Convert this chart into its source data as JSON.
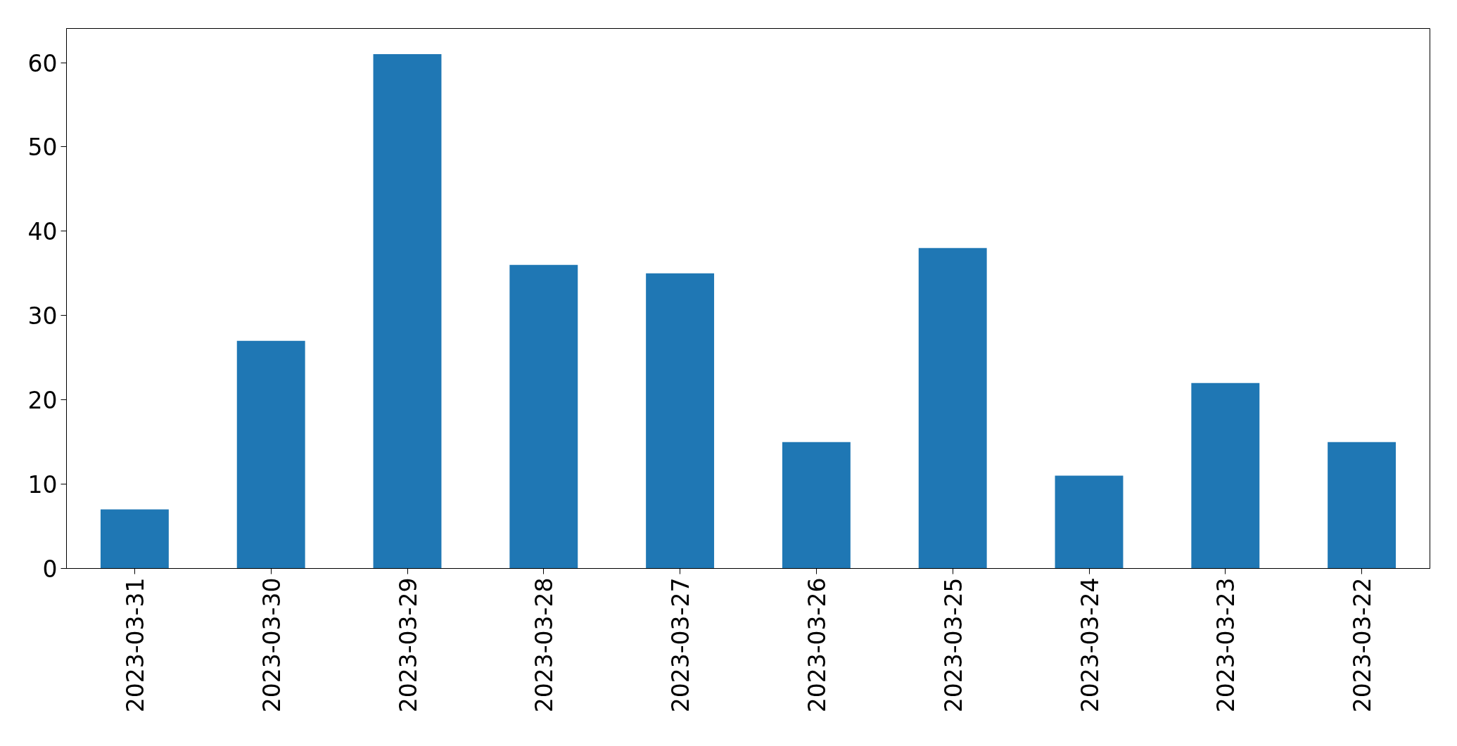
{
  "chart_data": {
    "type": "bar",
    "categories": [
      "2023-03-31",
      "2023-03-30",
      "2023-03-29",
      "2023-03-28",
      "2023-03-27",
      "2023-03-26",
      "2023-03-25",
      "2023-03-24",
      "2023-03-23",
      "2023-03-22"
    ],
    "values": [
      7,
      27,
      61,
      36,
      35,
      15,
      38,
      11,
      22,
      15
    ],
    "color": "#1f77b4",
    "ylim": [
      0,
      64.05
    ],
    "yticks": [
      0,
      10,
      20,
      30,
      40,
      50,
      60
    ],
    "grid": false
  }
}
